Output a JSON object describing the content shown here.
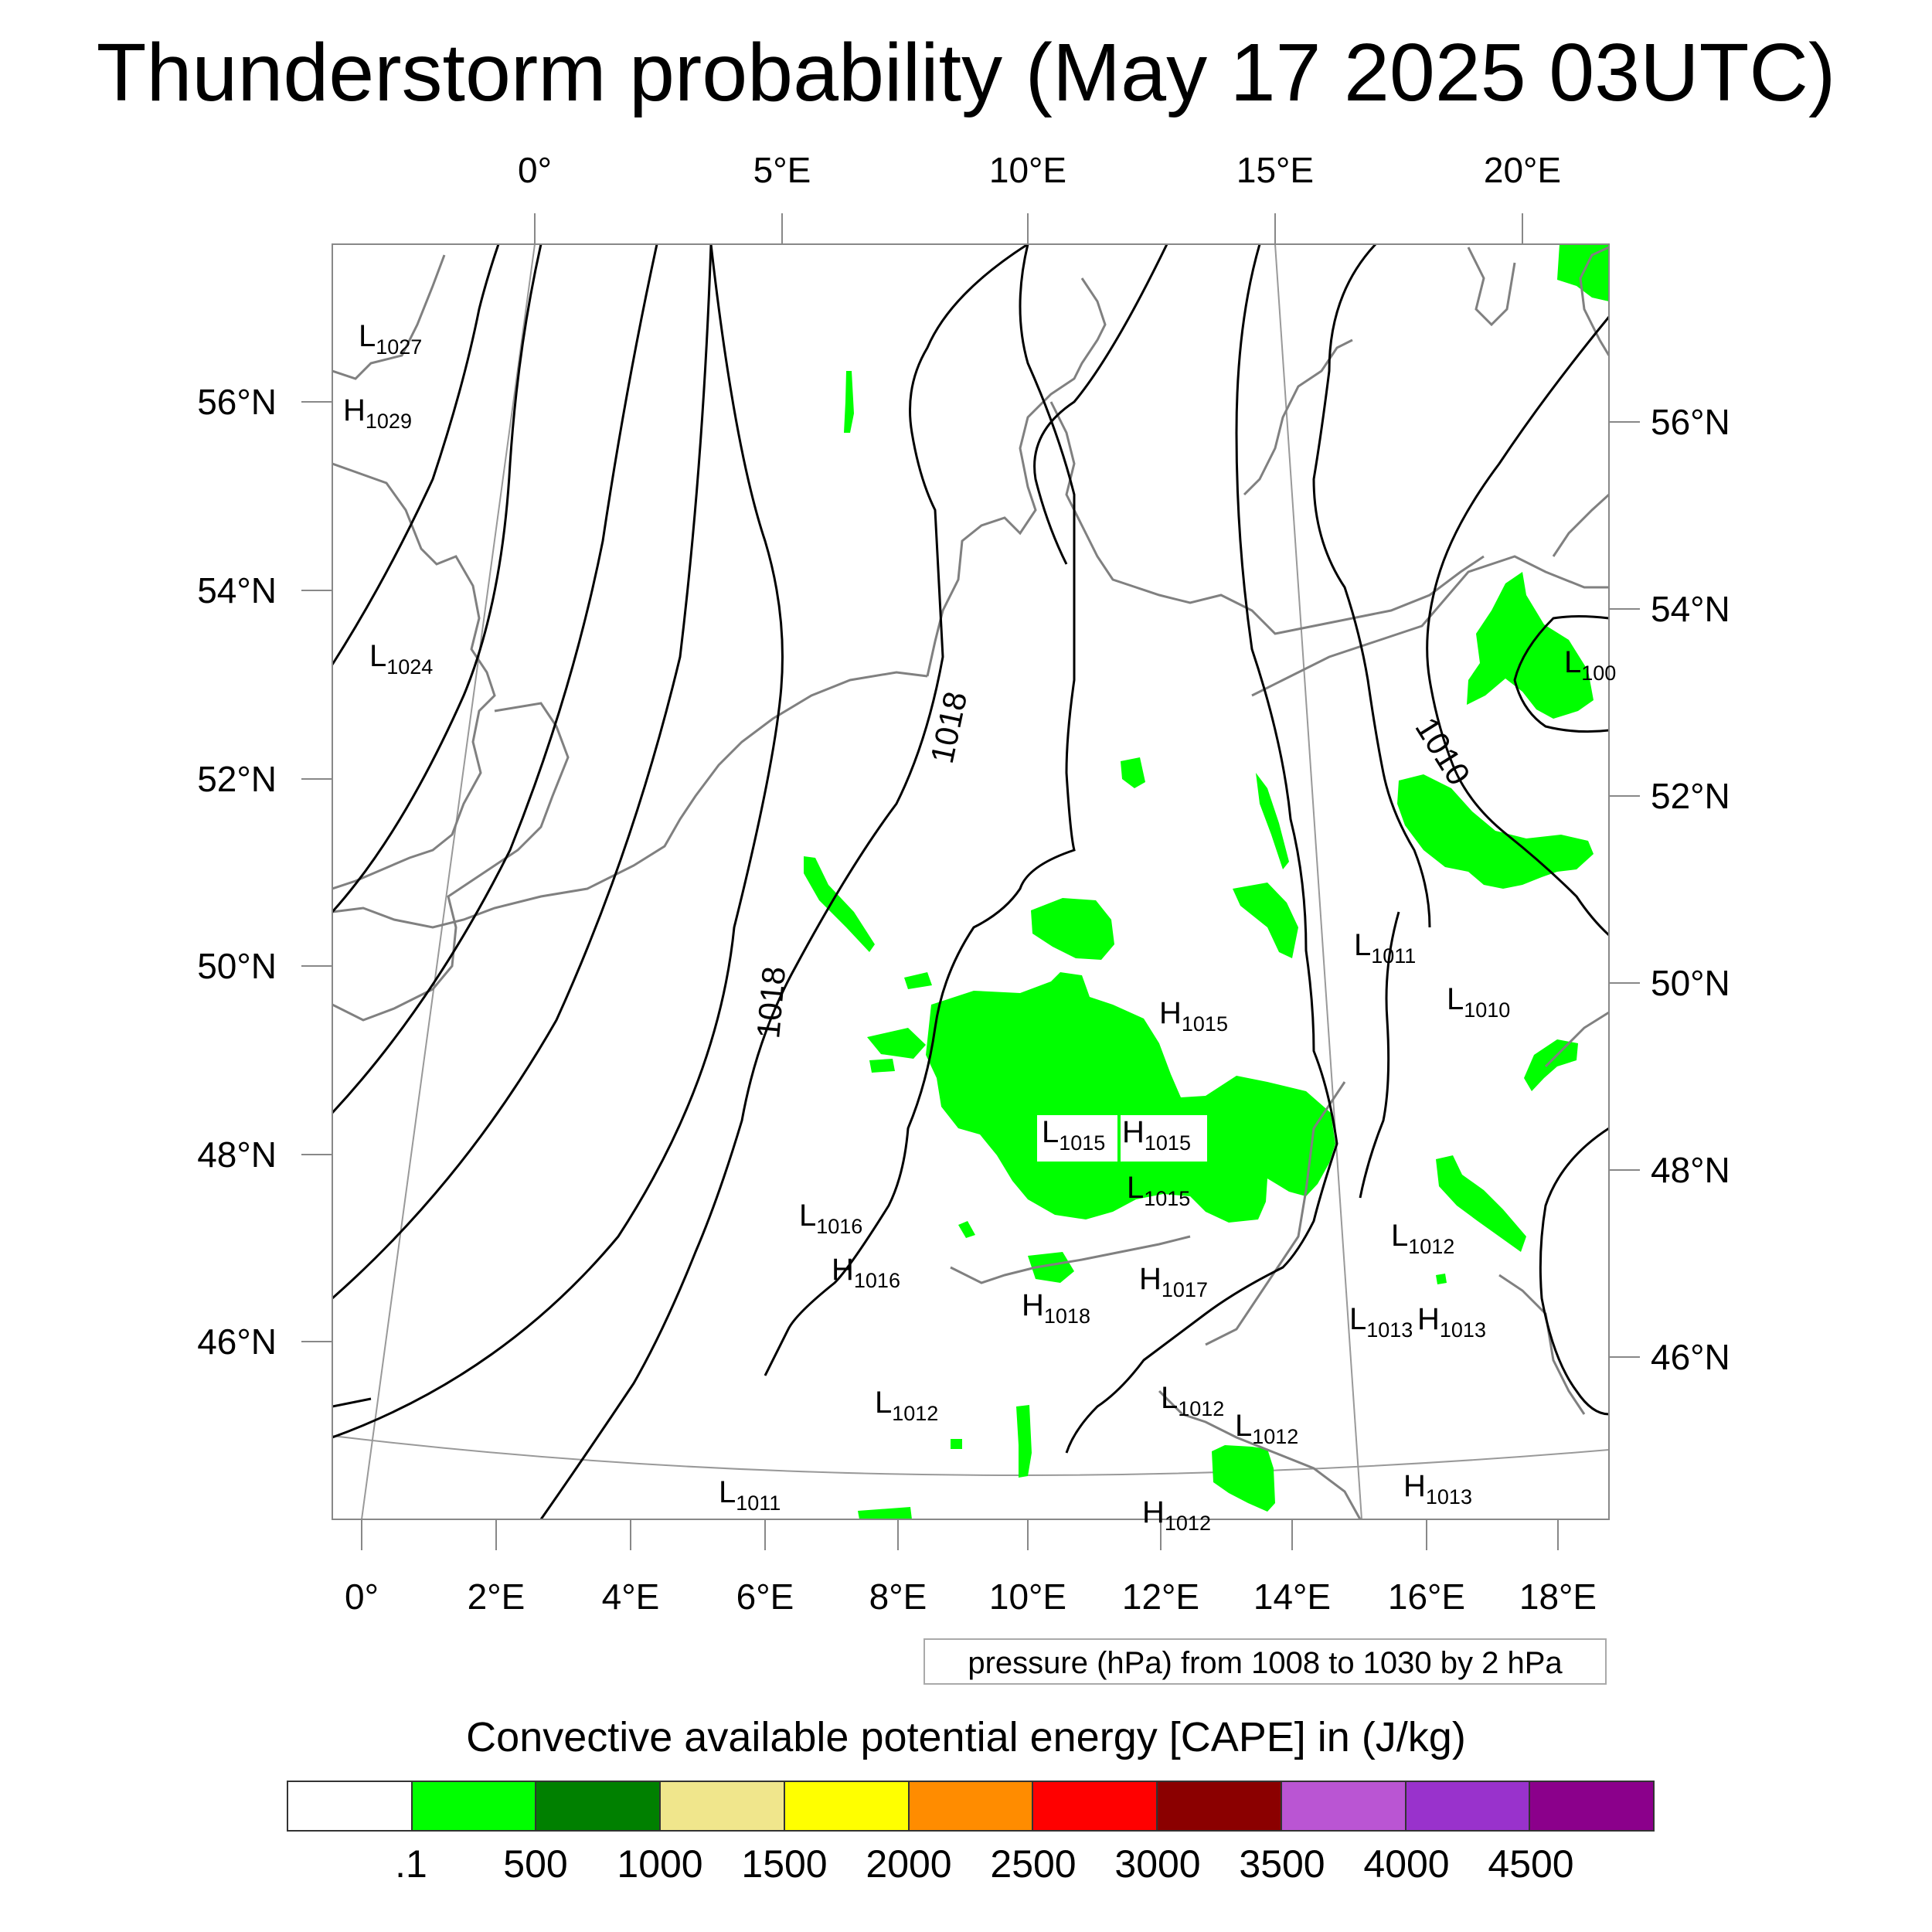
{
  "title": "Thunderstorm probability (May 17 2025 03UTC)",
  "map": {
    "top_lon_labels": [
      "0°",
      "5°E",
      "10°E",
      "15°E",
      "20°E"
    ],
    "bottom_lon_labels": [
      "0°",
      "2°E",
      "4°E",
      "6°E",
      "8°E",
      "10°E",
      "12°E",
      "14°E",
      "16°E",
      "18°E"
    ],
    "left_lat_labels": [
      "56°N",
      "54°N",
      "52°N",
      "50°N",
      "48°N",
      "46°N"
    ],
    "right_lat_labels": [
      "56°N",
      "54°N",
      "52°N",
      "50°N",
      "48°N",
      "46°N"
    ],
    "contour_labels": [
      "1018",
      "1018",
      "1010"
    ],
    "pressure_centers": [
      {
        "type": "L",
        "value": "1027"
      },
      {
        "type": "H",
        "value": "1029"
      },
      {
        "type": "L",
        "value": "1024"
      },
      {
        "type": "L",
        "value": "100"
      },
      {
        "type": "L",
        "value": "1011"
      },
      {
        "type": "H",
        "value": "1015"
      },
      {
        "type": "L",
        "value": "1010"
      },
      {
        "type": "L",
        "value": "1015"
      },
      {
        "type": "H",
        "value": "1015"
      },
      {
        "type": "L",
        "value": "1015"
      },
      {
        "type": "L",
        "value": "1016"
      },
      {
        "type": "H",
        "value": "1016"
      },
      {
        "type": "L",
        "value": "1012"
      },
      {
        "type": "H",
        "value": "1017"
      },
      {
        "type": "H",
        "value": "1018"
      },
      {
        "type": "L",
        "value": "1013"
      },
      {
        "type": "H",
        "value": "1013"
      },
      {
        "type": "L",
        "value": "1012"
      },
      {
        "type": "L",
        "value": "1012"
      },
      {
        "type": "L",
        "value": "1012"
      },
      {
        "type": "L",
        "value": "1011"
      },
      {
        "type": "H",
        "value": "1013"
      },
      {
        "type": "H",
        "value": "1012"
      }
    ],
    "colors": {
      "cape_low": "#00ff00",
      "contour": "#000000",
      "coast": "#808080"
    }
  },
  "contour_info": "pressure (hPa) from 1008 to 1030 by 2 hPa",
  "colorbar": {
    "title": "Convective available potential energy [CAPE] in (J/kg)",
    "colors": [
      "#ffffff",
      "#00ff00",
      "#008000",
      "#f0e68c",
      "#ffff00",
      "#ff8c00",
      "#ff0000",
      "#8b0000",
      "#ba55d3",
      "#9932cc",
      "#8b008b"
    ],
    "labels": [
      ".1",
      "500",
      "1000",
      "1500",
      "2000",
      "2500",
      "3000",
      "3500",
      "4000",
      "4500"
    ]
  }
}
